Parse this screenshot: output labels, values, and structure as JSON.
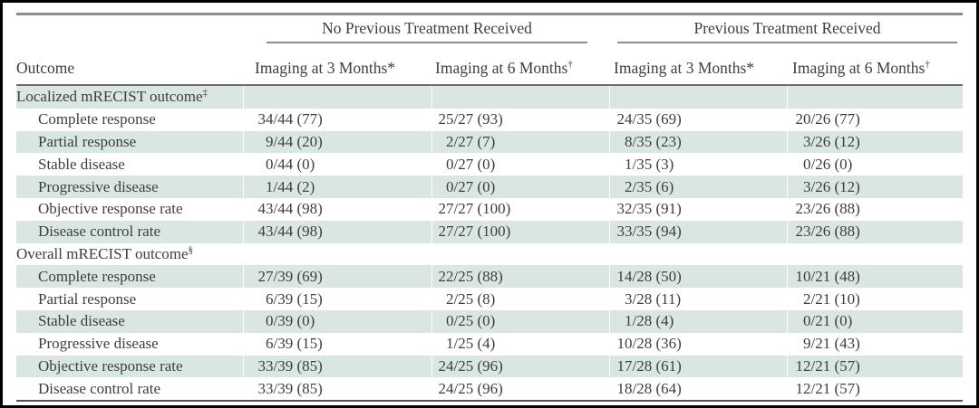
{
  "table": {
    "outcome_header": "Outcome",
    "spanners": [
      {
        "label": "No Previous Treatment Received"
      },
      {
        "label": "Previous Treatment Received"
      }
    ],
    "sub_headers": [
      "Imaging at 3 Months*",
      "Imaging at 6 Months†",
      "Imaging at 3 Months*",
      "Imaging at 6 Months†"
    ],
    "sections": [
      {
        "label": "Localized mRECIST outcome‡",
        "rows": [
          {
            "label": "Complete response",
            "values": [
              "34/44 (77)",
              "25/27 (93)",
              "24/35 (69)",
              "20/26 (77)"
            ]
          },
          {
            "label": "Partial response",
            "values": [
              "9/44 (20)",
              "2/27 (7)",
              "8/35 (23)",
              "3/26 (12)"
            ]
          },
          {
            "label": "Stable disease",
            "values": [
              "0/44 (0)",
              "0/27 (0)",
              "1/35 (3)",
              "0/26 (0)"
            ]
          },
          {
            "label": "Progressive disease",
            "values": [
              "1/44 (2)",
              "0/27 (0)",
              "2/35 (6)",
              "3/26 (12)"
            ]
          },
          {
            "label": "Objective response rate",
            "values": [
              "43/44 (98)",
              "27/27 (100)",
              "32/35 (91)",
              "23/26 (88)"
            ]
          },
          {
            "label": "Disease control rate",
            "values": [
              "43/44 (98)",
              "27/27 (100)",
              "33/35 (94)",
              "23/26 (88)"
            ]
          }
        ]
      },
      {
        "label": "Overall mRECIST outcome§",
        "rows": [
          {
            "label": "Complete response",
            "values": [
              "27/39 (69)",
              "22/25 (88)",
              "14/28 (50)",
              "10/21 (48)"
            ]
          },
          {
            "label": "Partial response",
            "values": [
              "6/39 (15)",
              "2/25 (8)",
              "3/28 (11)",
              "2/21 (10)"
            ]
          },
          {
            "label": "Stable disease",
            "values": [
              "0/39 (0)",
              "0/25 (0)",
              "1/28 (4)",
              "0/21 (0)"
            ]
          },
          {
            "label": "Progressive disease",
            "values": [
              "6/39 (15)",
              "1/25 (4)",
              "10/28 (36)",
              "9/21 (43)"
            ]
          },
          {
            "label": "Objective response rate",
            "values": [
              "33/39 (85)",
              "24/25 (96)",
              "17/28 (61)",
              "12/21 (57)"
            ]
          },
          {
            "label": "Disease control rate",
            "values": [
              "33/39 (85)",
              "24/25 (96)",
              "18/28 (64)",
              "12/21 (57)"
            ]
          }
        ]
      }
    ],
    "colors": {
      "row_shade": "#dae6e4",
      "rule_gray": "#8d8d8d",
      "rule_dark": "#535353",
      "text": "#3e3e3e",
      "frame": "#000000"
    }
  }
}
